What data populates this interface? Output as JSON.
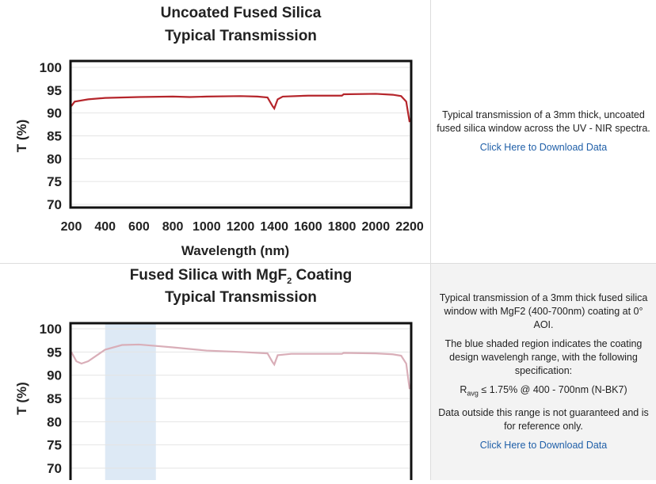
{
  "rows": [
    {
      "chart": {
        "type": "line",
        "title": [
          "Uncoated Fused Silica",
          "Typical Transmission"
        ],
        "ylabel": "T (%)",
        "xlabel": "Wavelength (nm)",
        "xlim": [
          200,
          2200
        ],
        "xticks": [
          200,
          400,
          600,
          800,
          1000,
          1200,
          1400,
          1600,
          1800,
          2000,
          2200
        ],
        "ylim": [
          70,
          100
        ],
        "yticks": [
          100,
          95,
          90,
          85,
          80,
          75,
          70
        ],
        "color": "#b5252b",
        "x": [
          200,
          220,
          300,
          400,
          600,
          800,
          900,
          1000,
          1200,
          1300,
          1360,
          1390,
          1400,
          1420,
          1450,
          1600,
          1800,
          1810,
          2000,
          2100,
          2150,
          2180,
          2200
        ],
        "values": [
          91.5,
          92.5,
          93,
          93.3,
          93.5,
          93.6,
          93.5,
          93.6,
          93.7,
          93.6,
          93.4,
          91.5,
          91,
          93,
          93.6,
          93.8,
          93.8,
          94.1,
          94.2,
          94,
          93.7,
          92.5,
          88
        ]
      },
      "description": [
        "Typical transmission of a 3mm thick, uncoated fused silica window across the UV - NIR spectra."
      ],
      "link": "Click Here to Download Data"
    },
    {
      "chart": {
        "type": "line",
        "title": [
          "Fused Silica with MgF",
          "Typical Transmission"
        ],
        "title_sub": "2",
        "title_after": " Coating",
        "ylabel": "T (%)",
        "xlim": [
          200,
          2200
        ],
        "ylim": [
          70,
          100
        ],
        "yticks": [
          100,
          95,
          90,
          85,
          80,
          75,
          70
        ],
        "color": "#d9aeb8",
        "shaded_range": [
          400,
          700
        ],
        "shade_color": "#dde9f5",
        "x": [
          200,
          230,
          260,
          300,
          400,
          500,
          600,
          700,
          800,
          1000,
          1200,
          1360,
          1390,
          1400,
          1420,
          1500,
          1800,
          1810,
          2000,
          2100,
          2150,
          2180,
          2200
        ],
        "values": [
          95,
          93,
          92.5,
          93,
          95.5,
          96.5,
          96.6,
          96.3,
          96,
          95.3,
          95,
          94.7,
          92.8,
          92.3,
          94.3,
          94.6,
          94.6,
          94.8,
          94.7,
          94.5,
          94.2,
          92.5,
          87
        ]
      },
      "description": [
        "Typical transmission of a 3mm thick fused silica window with MgF2 (400-700nm) coating at 0° AOI.",
        "The blue shaded region indicates the coating design wavelengh range, with the following specification:"
      ],
      "spec": [
        "R",
        "avg",
        "≤ 1.75% @ 400 - 700nm (N-BK7)"
      ],
      "note": "Data outside this range is not guaranteed and is for reference only.",
      "link": "Click Here to Download Data"
    }
  ]
}
